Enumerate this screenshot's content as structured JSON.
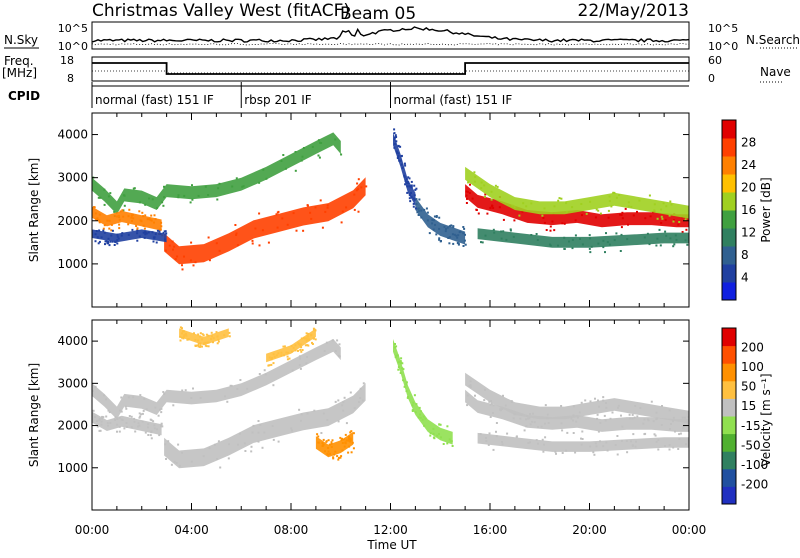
{
  "header": {
    "station": "Christmas Valley West (fitACF)",
    "beam": "Beam 05",
    "date": "22/May/2013"
  },
  "top_panels": {
    "nsky_label": "N.Sky",
    "nsearch_label": "N.Search",
    "nsky_ticks": [
      "10^5",
      "10^0"
    ],
    "nsearch_ticks": [
      "10^5",
      "10^0"
    ],
    "freq_label": [
      "Freq.",
      "[MHz]"
    ],
    "freq_ticks": [
      "18",
      "8"
    ],
    "nave_label": "Nave",
    "nave_ticks": [
      "60",
      "0"
    ],
    "cpid_label": "CPID",
    "cpid_modes": [
      {
        "label": "normal (fast) 151 IF",
        "start_hr": 0,
        "end_hr": 6
      },
      {
        "label": "rbsp 201 IF",
        "start_hr": 6,
        "end_hr": 12
      },
      {
        "label": "normal (fast) 151 IF",
        "start_hr": 12,
        "end_hr": 24
      }
    ]
  },
  "chart_data": [
    {
      "type": "heatmap",
      "name": "power",
      "ylabel": "Slant Range [km]",
      "y_ticks": [
        1000,
        2000,
        3000,
        4000
      ],
      "ylim": [
        0,
        4500
      ],
      "xlim": [
        0,
        24
      ],
      "colorbar": {
        "title": "Power [dB]",
        "ticks": [
          "4",
          "8",
          "12",
          "16",
          "20",
          "24",
          "28"
        ],
        "colors": [
          "#1020e0",
          "#2040a0",
          "#306090",
          "#308060",
          "#40a040",
          "#a0d020",
          "#ffc000",
          "#ff8000",
          "#ff4000",
          "#e00000"
        ]
      },
      "bands": [
        {
          "points": [
            [
              0.0,
              2850
            ],
            [
              0.5,
              2600
            ],
            [
              1.0,
              2300
            ],
            [
              1.3,
              2600
            ],
            [
              2.0,
              2550
            ],
            [
              2.6,
              2400
            ],
            [
              3.0,
              2700
            ],
            [
              4.0,
              2650
            ],
            [
              5.0,
              2700
            ],
            [
              6.0,
              2850
            ],
            [
              7.0,
              3100
            ],
            [
              8.0,
              3400
            ],
            [
              9.0,
              3700
            ],
            [
              9.7,
              3900
            ],
            [
              10.0,
              3700
            ]
          ],
          "width": 300,
          "color": "#40a040"
        },
        {
          "points": [
            [
              0.0,
              2200
            ],
            [
              0.6,
              2000
            ],
            [
              1.2,
              2100
            ],
            [
              2.0,
              2000
            ],
            [
              2.8,
              1900
            ]
          ],
          "width": 260,
          "color": "#ff8000"
        },
        {
          "points": [
            [
              2.9,
              1500
            ],
            [
              3.5,
              1200
            ],
            [
              4.5,
              1250
            ],
            [
              5.5,
              1500
            ],
            [
              6.5,
              1800
            ],
            [
              7.5,
              1950
            ],
            [
              8.5,
              2100
            ],
            [
              9.5,
              2200
            ],
            [
              10.5,
              2500
            ],
            [
              11.0,
              2800
            ]
          ],
          "width": 420,
          "color": "#ff4000"
        },
        {
          "points": [
            [
              15.0,
              2700
            ],
            [
              15.5,
              2450
            ],
            [
              16.5,
              2300
            ],
            [
              17.5,
              2100
            ],
            [
              18.5,
              2050
            ],
            [
              19.5,
              2100
            ],
            [
              20.5,
              2000
            ],
            [
              21.5,
              2050
            ],
            [
              22.5,
              2050
            ],
            [
              23.5,
              2000
            ],
            [
              24.0,
              2000
            ]
          ],
          "width": 300,
          "color": "#e00000"
        },
        {
          "points": [
            [
              15.0,
              3100
            ],
            [
              16.0,
              2700
            ],
            [
              17.0,
              2400
            ],
            [
              18.0,
              2300
            ],
            [
              19.0,
              2300
            ],
            [
              20.0,
              2400
            ],
            [
              21.0,
              2500
            ],
            [
              22.0,
              2400
            ],
            [
              23.0,
              2300
            ],
            [
              24.0,
              2200
            ]
          ],
          "width": 300,
          "color": "#a0d020"
        },
        {
          "points": [
            [
              13.0,
              2400
            ],
            [
              13.5,
              2000
            ],
            [
              14.0,
              1800
            ],
            [
              14.5,
              1700
            ],
            [
              15.0,
              1600
            ]
          ],
          "width": 300,
          "color": "#306090"
        },
        {
          "points": [
            [
              15.5,
              1700
            ],
            [
              17.0,
              1600
            ],
            [
              18.5,
              1500
            ],
            [
              20.0,
              1500
            ],
            [
              21.5,
              1550
            ],
            [
              23.0,
              1600
            ],
            [
              24.0,
              1600
            ]
          ],
          "width": 250,
          "color": "#308060"
        },
        {
          "points": [
            [
              12.1,
              3900
            ],
            [
              12.4,
              3400
            ],
            [
              12.7,
              2800
            ],
            [
              13.0,
              2500
            ]
          ],
          "width": 300,
          "color": "#2040a0"
        },
        {
          "points": [
            [
              0.0,
              1700
            ],
            [
              1.0,
              1600
            ],
            [
              2.0,
              1700
            ],
            [
              3.0,
              1600
            ]
          ],
          "width": 200,
          "color": "#2040a0"
        }
      ]
    },
    {
      "type": "heatmap",
      "name": "velocity",
      "ylabel": "Slant Range [km]",
      "y_ticks": [
        1000,
        2000,
        3000,
        4000
      ],
      "ylim": [
        0,
        4500
      ],
      "xlim": [
        0,
        24
      ],
      "xlabel": "Time UT",
      "x_ticks": [
        "00:00",
        "04:00",
        "08:00",
        "12:00",
        "16:00",
        "20:00",
        "00:00"
      ],
      "colorbar": {
        "title": "Velocity [m s⁻¹]",
        "ticks": [
          "-200",
          "-100",
          "-50",
          "-15",
          "15",
          "50",
          "100",
          "200"
        ],
        "colors": [
          "#2030c0",
          "#2050a0",
          "#308060",
          "#50b030",
          "#90e050",
          "#c0c0c0",
          "#ffc040",
          "#ff9000",
          "#ff5000",
          "#e00000"
        ]
      },
      "bands": [
        {
          "points": [
            [
              0.0,
              2850
            ],
            [
              0.5,
              2600
            ],
            [
              1.0,
              2300
            ],
            [
              1.3,
              2600
            ],
            [
              2.0,
              2550
            ],
            [
              2.6,
              2400
            ],
            [
              3.0,
              2700
            ],
            [
              4.0,
              2650
            ],
            [
              5.0,
              2700
            ],
            [
              6.0,
              2850
            ],
            [
              7.0,
              3100
            ],
            [
              8.0,
              3400
            ],
            [
              9.0,
              3700
            ],
            [
              9.7,
              3900
            ],
            [
              10.0,
              3700
            ]
          ],
          "width": 300,
          "color": "#c0c0c0"
        },
        {
          "points": [
            [
              0.0,
              2200
            ],
            [
              0.6,
              2000
            ],
            [
              1.2,
              2100
            ],
            [
              2.0,
              2000
            ],
            [
              2.8,
              1900
            ]
          ],
          "width": 260,
          "color": "#c0c0c0"
        },
        {
          "points": [
            [
              2.9,
              1500
            ],
            [
              3.5,
              1200
            ],
            [
              4.5,
              1250
            ],
            [
              5.5,
              1500
            ],
            [
              6.5,
              1800
            ],
            [
              7.5,
              1950
            ],
            [
              8.5,
              2100
            ],
            [
              9.5,
              2200
            ],
            [
              10.5,
              2500
            ],
            [
              11.0,
              2800
            ]
          ],
          "width": 420,
          "color": "#c0c0c0"
        },
        {
          "points": [
            [
              15.0,
              2700
            ],
            [
              15.5,
              2450
            ],
            [
              16.5,
              2300
            ],
            [
              17.5,
              2100
            ],
            [
              18.5,
              2050
            ],
            [
              19.5,
              2100
            ],
            [
              20.5,
              2000
            ],
            [
              21.5,
              2050
            ],
            [
              22.5,
              2050
            ],
            [
              23.5,
              2000
            ],
            [
              24.0,
              2000
            ]
          ],
          "width": 300,
          "color": "#c0c0c0"
        },
        {
          "points": [
            [
              15.0,
              3100
            ],
            [
              16.0,
              2700
            ],
            [
              17.0,
              2400
            ],
            [
              18.0,
              2300
            ],
            [
              19.0,
              2300
            ],
            [
              20.0,
              2400
            ],
            [
              21.0,
              2500
            ],
            [
              22.0,
              2400
            ],
            [
              23.0,
              2300
            ],
            [
              24.0,
              2200
            ]
          ],
          "width": 300,
          "color": "#c0c0c0"
        },
        {
          "points": [
            [
              12.1,
              3900
            ],
            [
              12.4,
              3400
            ],
            [
              12.7,
              2800
            ],
            [
              13.0,
              2400
            ],
            [
              13.5,
              2000
            ],
            [
              14.0,
              1800
            ],
            [
              14.5,
              1700
            ]
          ],
          "width": 300,
          "color": "#90e050"
        },
        {
          "points": [
            [
              15.5,
              1700
            ],
            [
              17.0,
              1600
            ],
            [
              18.5,
              1500
            ],
            [
              20.0,
              1500
            ],
            [
              21.5,
              1550
            ],
            [
              23.0,
              1600
            ],
            [
              24.0,
              1600
            ]
          ],
          "width": 250,
          "color": "#c0c0c0"
        },
        {
          "points": [
            [
              9.0,
              1600
            ],
            [
              9.5,
              1400
            ],
            [
              10.0,
              1500
            ],
            [
              10.5,
              1700
            ]
          ],
          "width": 300,
          "color": "#ff9000"
        },
        {
          "points": [
            [
              3.5,
              4200
            ],
            [
              4.5,
              4000
            ],
            [
              5.5,
              4200
            ]
          ],
          "width": 200,
          "color": "#ffc040"
        },
        {
          "points": [
            [
              7.0,
              3600
            ],
            [
              8.0,
              3800
            ],
            [
              9.0,
              4200
            ]
          ],
          "width": 200,
          "color": "#ffc040"
        }
      ]
    }
  ]
}
